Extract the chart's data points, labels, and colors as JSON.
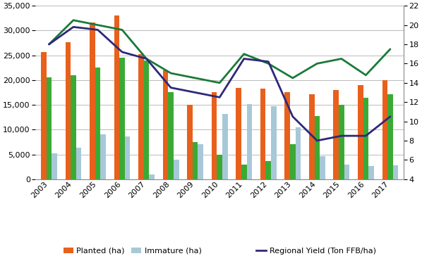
{
  "years": [
    2003,
    2004,
    2005,
    2006,
    2007,
    2008,
    2009,
    2010,
    2011,
    2012,
    2013,
    2014,
    2015,
    2016,
    2017
  ],
  "planted": [
    25700,
    27700,
    31600,
    33000,
    25300,
    22000,
    15000,
    17600,
    18400,
    18300,
    17500,
    17200,
    18000,
    19000,
    20000
  ],
  "mature": [
    20500,
    21000,
    22500,
    24500,
    24000,
    17500,
    7500,
    5000,
    2900,
    3700,
    7000,
    12700,
    15000,
    16500,
    17200
  ],
  "immature": [
    5200,
    6400,
    9000,
    8600,
    1000,
    4000,
    7000,
    13200,
    15200,
    14700,
    10500,
    4600,
    3000,
    2600,
    2800
  ],
  "national_yield": [
    18.0,
    20.5,
    20.0,
    19.5,
    16.5,
    15.0,
    14.5,
    14.0,
    17.0,
    16.0,
    14.5,
    16.0,
    16.5,
    14.8,
    17.5
  ],
  "regional_yield": [
    18.0,
    19.8,
    19.5,
    17.2,
    16.5,
    13.5,
    13.0,
    12.5,
    16.5,
    16.2,
    10.5,
    8.0,
    8.5,
    8.5,
    10.5
  ],
  "bar_width": 0.22,
  "planted_color": "#e8601c",
  "mature_color": "#3aaa35",
  "immature_color": "#a8c8d8",
  "national_color": "#1a7a3a",
  "regional_color": "#2e2878",
  "ylim_left": [
    0,
    35000
  ],
  "ylim_right": [
    4,
    22
  ],
  "yticks_left": [
    0,
    5000,
    10000,
    15000,
    20000,
    25000,
    30000,
    35000
  ],
  "yticks_right": [
    4,
    6,
    8,
    10,
    12,
    14,
    16,
    18,
    20,
    22
  ],
  "background_color": "#ffffff",
  "grid_color": "#b0b0b0",
  "legend_fontsize": 8.0,
  "tick_fontsize": 8.0
}
